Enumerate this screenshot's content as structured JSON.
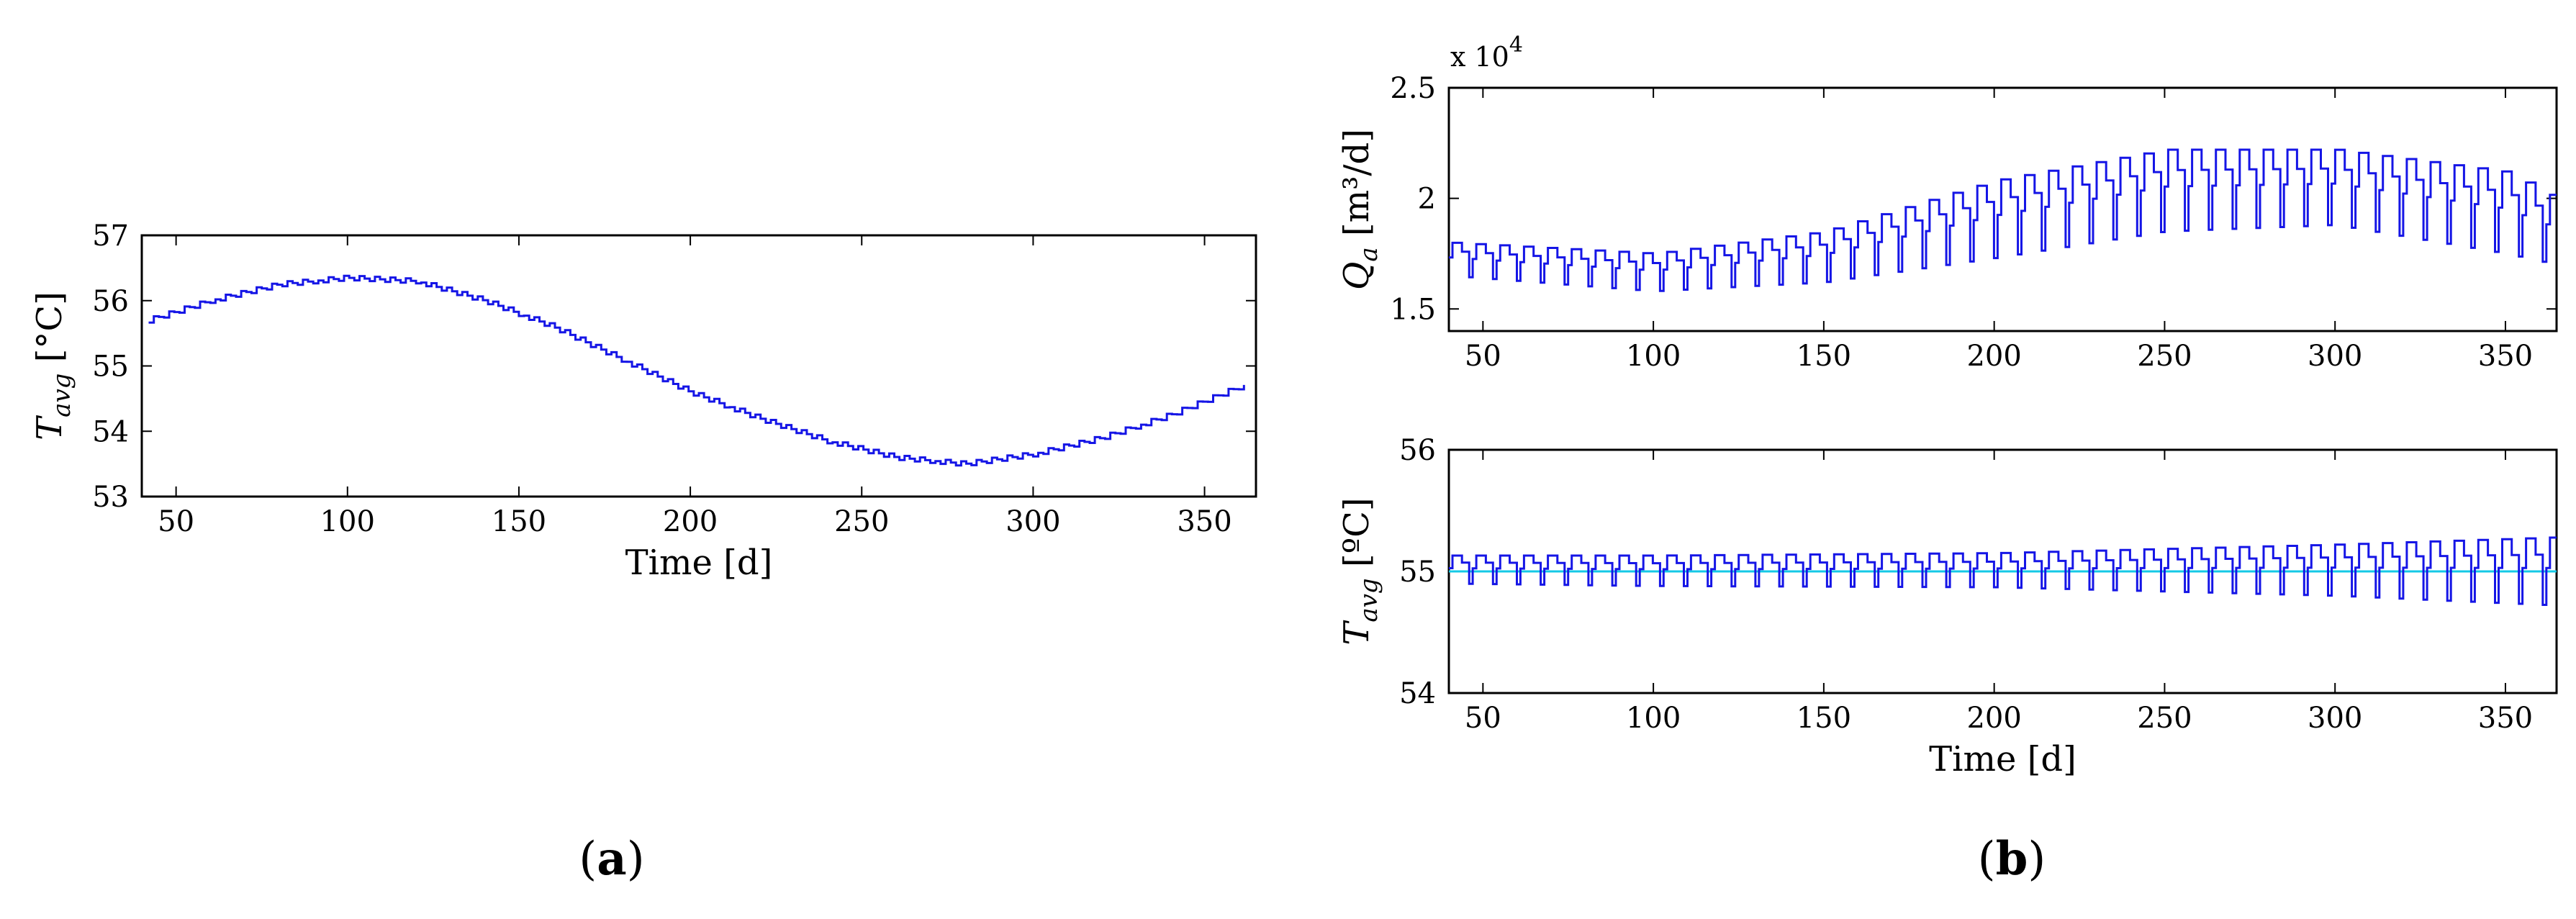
{
  "panels": [
    {
      "label": "a",
      "label_display": "(a)"
    },
    {
      "label": "b",
      "label_display": "(b)"
    }
  ],
  "colors": {
    "series": "#1515e6",
    "reference": "#14c8e6",
    "axis": "#000000"
  },
  "chart_data": [
    {
      "type": "line",
      "panel": "a",
      "title": "",
      "xlabel": "Time [d]",
      "ylabel_main": "T",
      "ylabel_sub": "avg",
      "ylabel_unit": " [°C]",
      "xlim": [
        40,
        365
      ],
      "ylim": [
        53,
        57
      ],
      "xticks": [
        50,
        100,
        150,
        200,
        250,
        300,
        350
      ],
      "yticks": [
        53,
        54,
        55,
        56,
        57
      ],
      "grid": false,
      "style": "step",
      "series": [
        {
          "points": [
            [
              42,
              55.7
            ],
            [
              60,
              56.0
            ],
            [
              80,
              56.25
            ],
            [
              100,
              56.35
            ],
            [
              120,
              56.3
            ],
            [
              140,
              56.0
            ],
            [
              160,
              55.6
            ],
            [
              180,
              55.1
            ],
            [
              200,
              54.6
            ],
            [
              220,
              54.2
            ],
            [
              240,
              53.85
            ],
            [
              260,
              53.6
            ],
            [
              280,
              53.5
            ],
            [
              300,
              53.65
            ],
            [
              320,
              53.9
            ],
            [
              340,
              54.25
            ],
            [
              362,
              54.72
            ]
          ]
        }
      ]
    },
    {
      "type": "line",
      "panel": "b-top",
      "title": "",
      "xlabel": "",
      "ylabel_main": "Q",
      "ylabel_sub": "a",
      "ylabel_unit": " [m³/d]",
      "y_multiplier": "x 10",
      "y_multiplier_exp": "4",
      "xlim": [
        40,
        365
      ],
      "ylim": [
        1.4,
        2.5
      ],
      "xticks": [
        50,
        100,
        150,
        200,
        250,
        300,
        350
      ],
      "yticks": [
        1.5,
        2,
        2.5
      ],
      "grid": false,
      "style": "step",
      "period_days": 7,
      "series": [
        {
          "name": "",
          "high": [
            [
              40,
              1.8
            ],
            [
              100,
              1.75
            ],
            [
              150,
              1.85
            ],
            [
              200,
              2.08
            ],
            [
              250,
              2.22
            ],
            [
              300,
              2.22
            ],
            [
              350,
              2.12
            ],
            [
              365,
              2.0
            ]
          ],
          "low": [
            [
              40,
              1.65
            ],
            [
              100,
              1.58
            ],
            [
              150,
              1.62
            ],
            [
              200,
              1.73
            ],
            [
              250,
              1.85
            ],
            [
              300,
              1.88
            ],
            [
              350,
              1.75
            ],
            [
              365,
              1.7
            ]
          ]
        }
      ]
    },
    {
      "type": "line",
      "panel": "b-bottom",
      "title": "",
      "xlabel": "Time [d]",
      "ylabel_main": "T",
      "ylabel_sub": "avg",
      "ylabel_unit": " [ºC]",
      "xlim": [
        40,
        365
      ],
      "ylim": [
        54,
        56
      ],
      "xticks": [
        50,
        100,
        150,
        200,
        250,
        300,
        350
      ],
      "yticks": [
        54,
        55,
        56
      ],
      "grid": false,
      "style": "step",
      "period_days": 7,
      "reference_line": 55,
      "series": [
        {
          "name": "",
          "high": [
            [
              40,
              55.13
            ],
            [
              100,
              55.13
            ],
            [
              200,
              55.15
            ],
            [
              300,
              55.22
            ],
            [
              365,
              55.28
            ]
          ],
          "low": [
            [
              40,
              54.9
            ],
            [
              100,
              54.88
            ],
            [
              200,
              54.87
            ],
            [
              300,
              54.8
            ],
            [
              365,
              54.72
            ]
          ]
        }
      ]
    }
  ]
}
